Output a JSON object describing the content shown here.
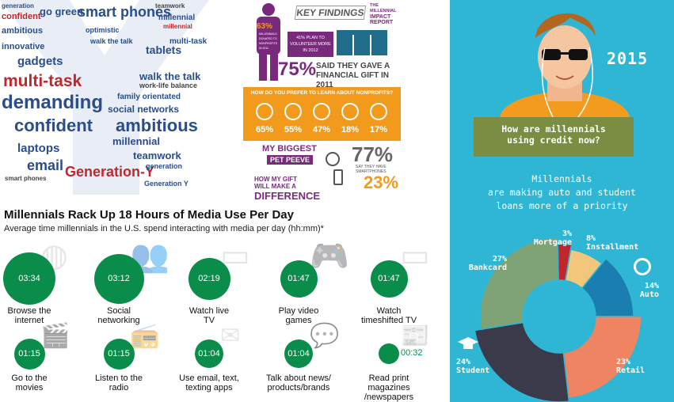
{
  "wordcloud": {
    "words": [
      {
        "t": "generation",
        "c": "#2a4d8c",
        "s": 8
      },
      {
        "t": "go green",
        "c": "#2a4d8c",
        "s": 13
      },
      {
        "t": "smart phones",
        "c": "#2a4d8c",
        "s": 18
      },
      {
        "t": "teamwork",
        "c": "#444",
        "s": 8
      },
      {
        "t": "confident",
        "c": "#c0272d",
        "s": 11
      },
      {
        "t": "millennial",
        "c": "#2a4d8c",
        "s": 10
      },
      {
        "t": "optimistic",
        "c": "#2a4d8c",
        "s": 9
      },
      {
        "t": "ambitious",
        "c": "#2a4d8c",
        "s": 11
      },
      {
        "t": "walk the talk",
        "c": "#2a4d8c",
        "s": 9
      },
      {
        "t": "millennial",
        "c": "#c0272d",
        "s": 8
      },
      {
        "t": "multi-task",
        "c": "#2a4d8c",
        "s": 10
      },
      {
        "t": "innovative",
        "c": "#2a4d8c",
        "s": 11
      },
      {
        "t": "gadgets",
        "c": "#2a4d8c",
        "s": 15
      },
      {
        "t": "tablets",
        "c": "#2a4d8c",
        "s": 14
      },
      {
        "t": "walk the talk",
        "c": "#2a4d8c",
        "s": 13
      },
      {
        "t": "multi-task",
        "c": "#c0272d",
        "s": 21
      },
      {
        "t": "work-life balance",
        "c": "#444",
        "s": 9
      },
      {
        "t": "family orientated",
        "c": "#2a4d8c",
        "s": 10
      },
      {
        "t": "demanding",
        "c": "#2a4d8c",
        "s": 24
      },
      {
        "t": "social networks",
        "c": "#2a4d8c",
        "s": 12
      },
      {
        "t": "ambitious",
        "c": "#2a4d8c",
        "s": 22
      },
      {
        "t": "confident",
        "c": "#2a4d8c",
        "s": 22
      },
      {
        "t": "millennial",
        "c": "#2a4d8c",
        "s": 13
      },
      {
        "t": "laptops",
        "c": "#2a4d8c",
        "s": 15
      },
      {
        "t": "teamwork",
        "c": "#2a4d8c",
        "s": 13
      },
      {
        "t": "email",
        "c": "#2a4d8c",
        "s": 18
      },
      {
        "t": "Generation-Y",
        "c": "#c0272d",
        "s": 18
      },
      {
        "t": "generation",
        "c": "#2a4d8c",
        "s": 9
      },
      {
        "t": "smart phones",
        "c": "#444",
        "s": 8
      },
      {
        "t": "Generation Y",
        "c": "#2a4d8c",
        "s": 9
      }
    ]
  },
  "key_findings": {
    "title": "KEY FINDINGS",
    "source_lines": [
      "THE MILLENNIAL",
      "IMPACT",
      "REPORT"
    ],
    "stat_63": "63%",
    "stat_63_note": "MILLENNIALS DONATED TO NONPROFITS IN 2011",
    "volunteer_text": "41% PLAN TO VOLUNTEER MORE IN 2012",
    "stat_75": "75%",
    "stat_75_text_1": "SAID THEY GAVE A",
    "stat_75_text_2": "FINANCIAL GIFT IN 2011",
    "question": "HOW DO YOU PREFER TO LEARN ABOUT NONPROFITS?",
    "prefs": [
      "65%",
      "55%",
      "47%",
      "18%",
      "17%"
    ],
    "peeve_1": "MY BIGGEST",
    "peeve_2": "PET PEEVE",
    "peeve_3": "HOW MY GIFT WILL MAKE A",
    "peeve_4": "DIFFERENCE",
    "stat_77": "77%",
    "stat_77_note": "SAY THEY HAVE SMARTPHONES",
    "stat_23": "23%"
  },
  "media": {
    "title": "Millennials Rack Up 18 Hours of Media Use Per Day",
    "subtitle": "Average time millennials in the U.S. spend interacting with media per day (hh:mm)*",
    "items": [
      {
        "time": "03:34",
        "label": [
          "Browse the",
          "internet"
        ],
        "icon": "globe-icon"
      },
      {
        "time": "03:12",
        "label": [
          "Social",
          "networking"
        ],
        "icon": "people-icon"
      },
      {
        "time": "02:19",
        "label": [
          "Watch live",
          "TV"
        ],
        "icon": "tv-icon"
      },
      {
        "time": "01:47",
        "label": [
          "Play video",
          "games"
        ],
        "icon": "gamepad-icon"
      },
      {
        "time": "01:47",
        "label": [
          "Watch",
          "timeshifted TV"
        ],
        "icon": "tv-icon"
      },
      {
        "time": "01:15",
        "label": [
          "Go to the",
          "movies"
        ],
        "icon": "clapper-icon"
      },
      {
        "time": "01:15",
        "label": [
          "Listen to the",
          "radio"
        ],
        "icon": "radio-icon"
      },
      {
        "time": "01:04",
        "label": [
          "Use email, text,",
          "texting apps"
        ],
        "icon": "envelope-icon"
      },
      {
        "time": "01:04",
        "label": [
          "Talk about news/",
          "products/brands"
        ],
        "icon": "speech-bubble-icon"
      },
      {
        "time": "00:32",
        "label": [
          "Read print",
          "magazines",
          "/newspapers"
        ],
        "icon": "newspaper-icon"
      }
    ]
  },
  "credit": {
    "year": "2015",
    "question_1": "How are millennials",
    "question_2": "using credit now?",
    "note_1": "Millennials",
    "note_2": "are making auto and student",
    "note_3": "loans more of a priority",
    "colors": {
      "bg": "#2fb6d4",
      "mortgage": "#c0272d",
      "installment": "#f3c77b",
      "auto": "#1a7fb0",
      "retail": "#ee8461",
      "student": "#3a3a4a",
      "bankcard": "#7fa374"
    },
    "segments": [
      {
        "name": "Mortgage",
        "value": 3
      },
      {
        "name": "Installment",
        "value": 8
      },
      {
        "name": "Auto",
        "value": 14
      },
      {
        "name": "Retail",
        "value": 23
      },
      {
        "name": "Student",
        "value": 24
      },
      {
        "name": "Bankcard",
        "value": 27
      }
    ],
    "labels": {
      "mortgage_pct": "3%",
      "mortgage": "Mortgage",
      "installment_pct": "8%",
      "installment": "Installment",
      "auto_pct": "14%",
      "auto": "Auto",
      "retail_pct": "23%",
      "retail": "Retail",
      "student_pct": "24%",
      "student": "Student",
      "bankcard_pct": "27%",
      "bankcard": "Bankcard"
    }
  }
}
